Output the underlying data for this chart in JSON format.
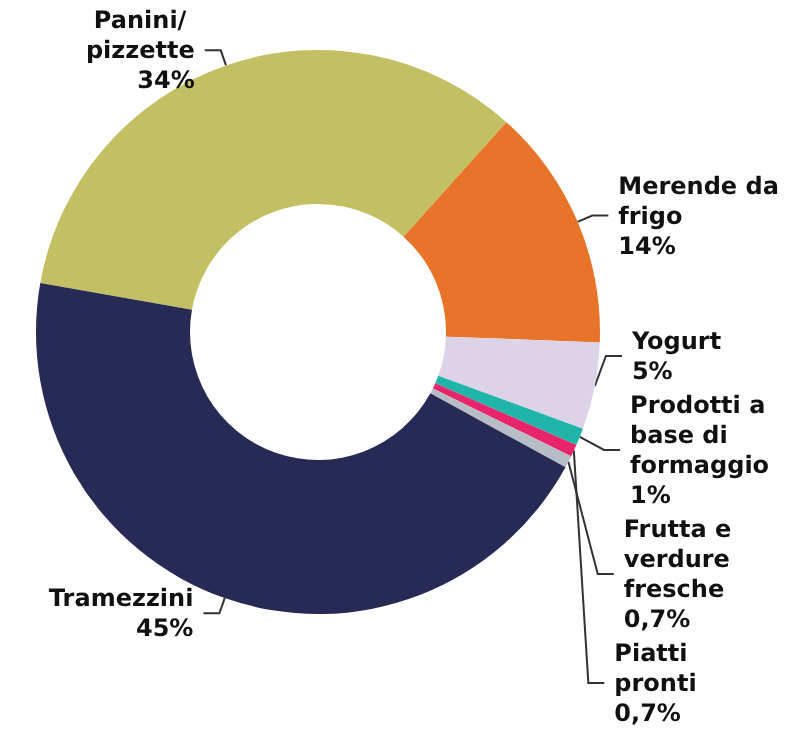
{
  "chart_data": {
    "type": "donut",
    "categories": [
      "Panini/ pizzette",
      "Merende da frigo",
      "Yogurt",
      "Prodotti a base di formaggio",
      "Piatti pronti",
      "Frutta e verdure fresche",
      "Tramezzini"
    ],
    "values": [
      34,
      14,
      5,
      1,
      0.7,
      0.7,
      45
    ],
    "value_labels": [
      "34%",
      "14%",
      "5%",
      "1%",
      "0,7%",
      "0,7%",
      "45%"
    ],
    "colors": [
      "#c3c064",
      "#e8742a",
      "#dcd3e8",
      "#1fb5a8",
      "#e8246a",
      "#b8bcc4",
      "#262a55"
    ],
    "legend": false
  }
}
